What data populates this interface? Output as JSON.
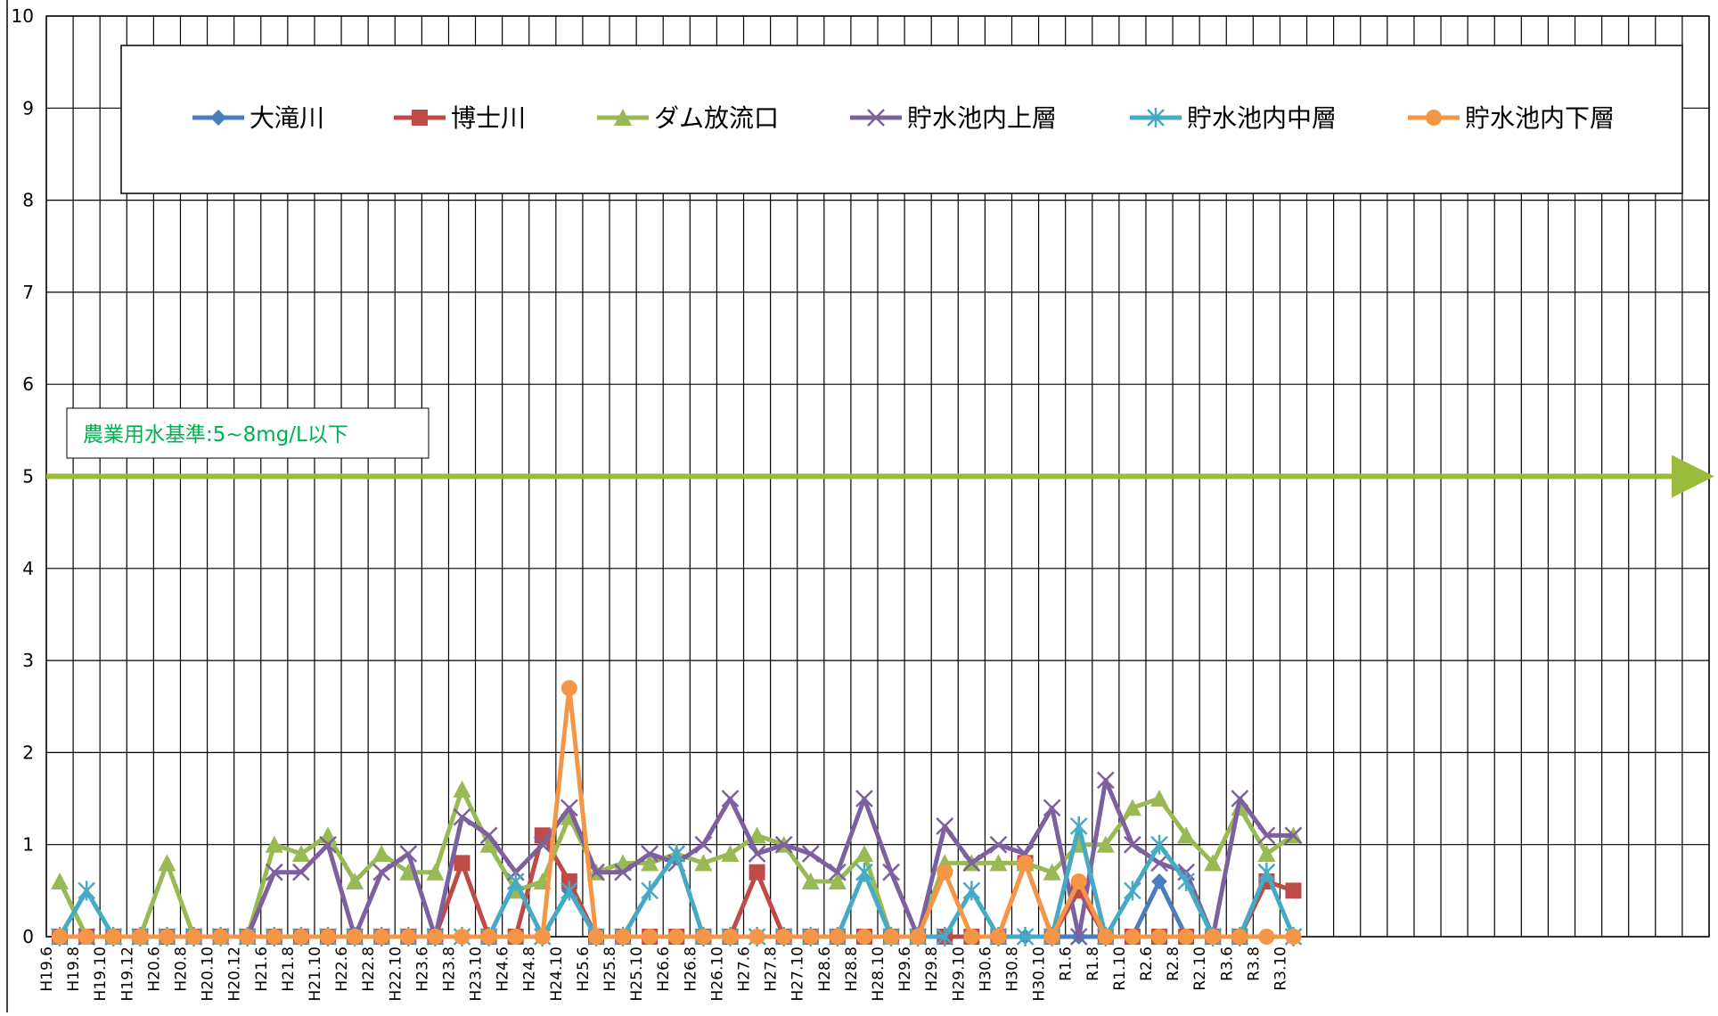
{
  "chart_data": {
    "type": "line",
    "x": [
      "H19.6",
      "H19.8",
      "H19.10",
      "H19.12",
      "H20.6",
      "H20.8",
      "H20.10",
      "H20.12",
      "H21.6",
      "H21.8",
      "H21.10",
      "H22.6",
      "H22.8",
      "H22.10",
      "H23.6",
      "H23.8",
      "H23.10",
      "H24.6",
      "H24.8",
      "H24.10",
      "H25.6",
      "H25.8",
      "H25.10",
      "H26.6",
      "H26.8",
      "H26.10",
      "H27.6",
      "H27.8",
      "H27.10",
      "H28.6",
      "H28.8",
      "H28.10",
      "H29.6",
      "H29.8",
      "H29.10",
      "H30.6",
      "H30.8",
      "H30.10",
      "R1.6",
      "R1.8",
      "R1.10",
      "R2.6",
      "R2.8",
      "R2.10",
      "R3.6",
      "R3.8",
      "R3.10"
    ],
    "ylim": [
      0,
      10
    ],
    "yticks": [
      0,
      1,
      2,
      3,
      4,
      5,
      6,
      7,
      8,
      9,
      10
    ],
    "grid": true,
    "legend_position": "top",
    "series": [
      {
        "name": "大滝川",
        "color": "#4a7ebb",
        "marker": "diamond",
        "values": [
          0,
          0,
          0,
          0,
          0,
          0,
          0,
          0,
          0,
          0,
          0,
          0,
          0,
          0,
          0,
          0,
          0,
          0,
          0,
          0.5,
          0,
          0,
          0,
          0,
          0,
          0,
          0,
          0,
          0,
          0,
          0,
          0,
          0,
          0,
          0,
          0,
          0,
          0,
          0,
          0,
          0,
          0.6,
          0,
          0,
          0,
          0,
          0
        ]
      },
      {
        "name": "博士川",
        "color": "#be4b48",
        "marker": "square",
        "values": [
          0,
          0,
          0,
          0,
          0,
          0,
          0,
          0,
          0,
          0,
          0,
          0,
          0,
          0,
          0,
          0.8,
          0,
          0,
          1.1,
          0.6,
          0,
          0,
          0,
          0,
          0,
          0,
          0.7,
          0,
          0,
          0,
          0,
          0,
          0,
          0,
          0,
          0,
          0.8,
          0,
          0.5,
          0,
          0,
          0,
          0,
          0,
          0,
          0.6,
          0.5
        ]
      },
      {
        "name": "ダム放流口",
        "color": "#98b954",
        "marker": "triangle",
        "values": [
          0.6,
          0,
          0,
          0,
          0.8,
          0,
          0,
          0,
          1.0,
          0.9,
          1.1,
          0.6,
          0.9,
          0.7,
          0.7,
          1.6,
          1.0,
          0.5,
          0.6,
          1.3,
          0.7,
          0.8,
          0.8,
          0.9,
          0.8,
          0.9,
          1.1,
          1.0,
          0.6,
          0.6,
          0.9,
          0,
          0,
          0.8,
          0.8,
          0.8,
          0.8,
          0.7,
          1.0,
          1.0,
          1.4,
          1.5,
          1.1,
          0.8,
          1.4,
          0.9,
          1.1
        ]
      },
      {
        "name": "貯水池内上層",
        "color": "#7d60a0",
        "marker": "x",
        "values": [
          0,
          0,
          0,
          0,
          0,
          0,
          0,
          0,
          0.7,
          0.7,
          1.0,
          0,
          0.7,
          0.9,
          0,
          1.3,
          1.1,
          0.7,
          1.0,
          1.4,
          0.7,
          0.7,
          0.9,
          0.8,
          1.0,
          1.5,
          0.9,
          1.0,
          0.9,
          0.7,
          1.5,
          0.7,
          0,
          1.2,
          0.8,
          1.0,
          0.9,
          1.4,
          0,
          1.7,
          1.0,
          0.8,
          0.7,
          0,
          1.5,
          1.1,
          1.1
        ]
      },
      {
        "name": "貯水池内中層",
        "color": "#46aac5",
        "marker": "asterisk",
        "values": [
          0,
          0.5,
          0,
          0,
          0,
          0,
          0,
          0,
          0,
          0,
          0,
          0,
          0,
          0,
          0,
          0,
          0,
          0.6,
          0,
          0.5,
          0,
          0,
          0.5,
          0.9,
          0,
          0,
          0,
          0,
          0,
          0,
          0.7,
          0,
          0,
          0,
          0.5,
          0,
          0,
          0,
          1.2,
          0,
          0.5,
          1.0,
          0.6,
          0,
          0,
          0.7,
          0
        ]
      },
      {
        "name": "貯水池内下層",
        "color": "#f59647",
        "marker": "circle",
        "values": [
          0,
          0,
          0,
          0,
          0,
          0,
          0,
          0,
          0,
          0,
          0,
          0,
          0,
          0,
          0,
          0,
          0,
          0,
          0,
          2.7,
          0,
          0,
          0,
          0,
          0,
          0,
          0,
          0,
          0,
          0,
          0,
          0,
          0,
          0.7,
          0,
          0,
          0.8,
          0,
          0.6,
          0,
          0,
          0,
          0,
          0,
          0,
          0,
          0
        ]
      }
    ],
    "reference_line": {
      "value": 5,
      "label": "農業用水基準:5~8mg/L以下",
      "color": "#9bbb3c",
      "label_color": "#00b050"
    }
  }
}
